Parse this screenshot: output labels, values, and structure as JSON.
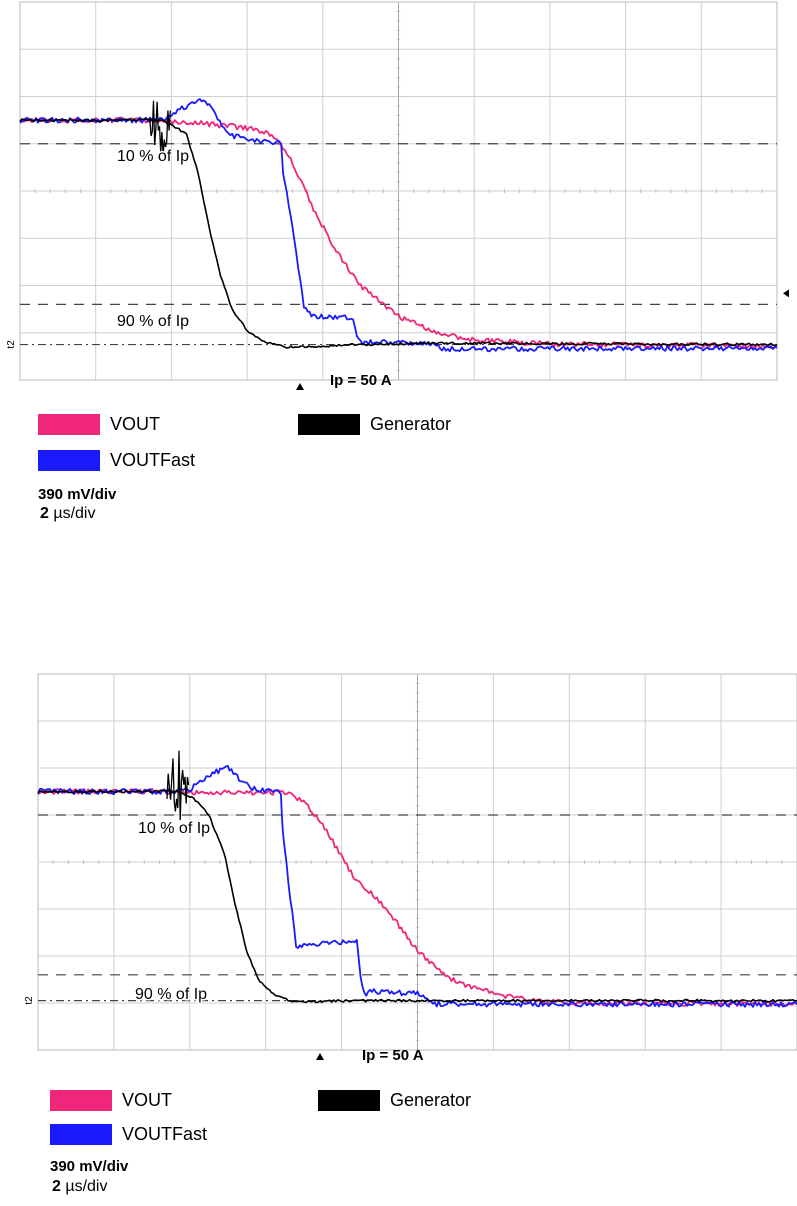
{
  "chart_data": [
    {
      "type": "line",
      "title": "",
      "xlabel": "",
      "ylabel": "",
      "divisions": {
        "x": 10,
        "y": 8
      },
      "grid": true,
      "x_unit": "µs",
      "y_unit": "div",
      "xlim": [
        -8,
        12
      ],
      "ylim": [
        0,
        8
      ],
      "time_per_div_us": 2,
      "volts_per_div_mv": 390,
      "annotations": [
        {
          "text": "10 % of Ip",
          "level_div": 5.0
        },
        {
          "text": "90 % of Ip",
          "level_div": 1.6
        },
        {
          "text": "Ip = 50 A",
          "level_div": 0.75
        }
      ],
      "channel_marker": "t2",
      "series": [
        {
          "name": "VOUT",
          "color": "#f0267a",
          "points": [
            [
              -8,
              5.5
            ],
            [
              -4.3,
              5.5
            ],
            [
              -3.8,
              5.45
            ],
            [
              -3.0,
              5.42
            ],
            [
              -2.0,
              5.33
            ],
            [
              -1.5,
              5.25
            ],
            [
              -1.2,
              5.1
            ],
            [
              -0.8,
              4.6
            ],
            [
              -0.3,
              3.7
            ],
            [
              0.3,
              2.8
            ],
            [
              1.0,
              2.0
            ],
            [
              2.0,
              1.35
            ],
            [
              3.0,
              1.0
            ],
            [
              4.0,
              0.85
            ],
            [
              6.0,
              0.76
            ],
            [
              12,
              0.72
            ]
          ]
        },
        {
          "name": "VOUTFast",
          "color": "#1a1aff",
          "points": [
            [
              -8,
              5.5
            ],
            [
              -4.3,
              5.5
            ],
            [
              -4.0,
              5.6
            ],
            [
              -3.5,
              5.85
            ],
            [
              -3.2,
              5.95
            ],
            [
              -3.0,
              5.8
            ],
            [
              -2.5,
              5.2
            ],
            [
              -1.8,
              5.05
            ],
            [
              -1.1,
              5.0
            ],
            [
              -1.05,
              4.4
            ],
            [
              -0.75,
              3.0
            ],
            [
              -0.5,
              1.55
            ],
            [
              -0.3,
              1.35
            ],
            [
              0.8,
              1.33
            ],
            [
              0.9,
              0.9
            ],
            [
              1.0,
              0.8
            ],
            [
              3.0,
              0.76
            ],
            [
              3.2,
              0.65
            ],
            [
              12,
              0.68
            ]
          ]
        },
        {
          "name": "Generator",
          "color": "#000000",
          "points": [
            [
              -8,
              5.5
            ],
            [
              -4.3,
              5.5
            ],
            [
              -4.0,
              5.4
            ],
            [
              -3.6,
              5.2
            ],
            [
              -3.3,
              4.4
            ],
            [
              -3.0,
              3.2
            ],
            [
              -2.7,
              2.2
            ],
            [
              -2.4,
              1.5
            ],
            [
              -2.0,
              1.05
            ],
            [
              -1.5,
              0.8
            ],
            [
              -1.0,
              0.7
            ],
            [
              0.0,
              0.72
            ],
            [
              1.0,
              0.75
            ],
            [
              3.0,
              0.78
            ],
            [
              12,
              0.75
            ]
          ]
        }
      ],
      "noise_burst": {
        "x_from": -4.6,
        "x_to": -4.0,
        "y_from": 4.7,
        "y_to": 6.3
      }
    },
    {
      "type": "line",
      "title": "",
      "xlabel": "",
      "ylabel": "",
      "divisions": {
        "x": 10,
        "y": 8
      },
      "grid": true,
      "x_unit": "µs",
      "y_unit": "div",
      "xlim": [
        -8,
        12
      ],
      "ylim": [
        0,
        8
      ],
      "time_per_div_us": 2,
      "volts_per_div_mv": 390,
      "annotations": [
        {
          "text": "10 % of Ip",
          "level_div": 5.0
        },
        {
          "text": "90 % of Ip",
          "level_div": 1.6
        },
        {
          "text": "Ip = 50 A",
          "level_div": 1.05
        }
      ],
      "channel_marker": "t2",
      "series": [
        {
          "name": "VOUT",
          "color": "#f0267a",
          "points": [
            [
              -8,
              5.5
            ],
            [
              -4.3,
              5.5
            ],
            [
              -3.5,
              5.47
            ],
            [
              -2.5,
              5.48
            ],
            [
              -1.5,
              5.48
            ],
            [
              -1.0,
              5.3
            ],
            [
              -0.5,
              4.8
            ],
            [
              0.3,
              3.7
            ],
            [
              1.2,
              3.0
            ],
            [
              2.0,
              2.1
            ],
            [
              3.0,
              1.45
            ],
            [
              4.0,
              1.2
            ],
            [
              5.0,
              1.05
            ],
            [
              6.0,
              1.0
            ],
            [
              12,
              0.98
            ]
          ]
        },
        {
          "name": "VOUTFast",
          "color": "#1a1aff",
          "points": [
            [
              -8,
              5.5
            ],
            [
              -4.3,
              5.5
            ],
            [
              -4.0,
              5.55
            ],
            [
              -3.4,
              5.9
            ],
            [
              -3.0,
              6.0
            ],
            [
              -2.6,
              5.7
            ],
            [
              -2.3,
              5.55
            ],
            [
              -1.6,
              5.5
            ],
            [
              -1.55,
              4.6
            ],
            [
              -1.3,
              2.9
            ],
            [
              -1.2,
              2.2
            ],
            [
              -0.8,
              2.25
            ],
            [
              0.4,
              2.3
            ],
            [
              0.5,
              1.5
            ],
            [
              0.6,
              1.2
            ],
            [
              0.9,
              1.25
            ],
            [
              2.0,
              1.2
            ],
            [
              2.4,
              0.98
            ],
            [
              12,
              0.97
            ]
          ]
        },
        {
          "name": "Generator",
          "color": "#000000",
          "points": [
            [
              -8,
              5.5
            ],
            [
              -4.3,
              5.5
            ],
            [
              -3.9,
              5.35
            ],
            [
              -3.5,
              5.0
            ],
            [
              -3.1,
              4.2
            ],
            [
              -2.8,
              3.1
            ],
            [
              -2.5,
              2.1
            ],
            [
              -2.2,
              1.5
            ],
            [
              -1.8,
              1.2
            ],
            [
              -1.3,
              1.02
            ],
            [
              0.0,
              1.05
            ],
            [
              2.0,
              1.05
            ],
            [
              12,
              1.05
            ]
          ]
        }
      ],
      "noise_burst": {
        "x_from": -4.6,
        "x_to": -4.0,
        "y_from": 4.8,
        "y_to": 6.4
      }
    }
  ],
  "legends": [
    {
      "vout": "VOUT",
      "voutfast": "VOUTFast",
      "generator": "Generator",
      "vout_color": "#f0267a",
      "voutfast_color": "#1a1aff",
      "generator_color": "#000000",
      "volts_scale": "390 mV/div",
      "time_scale_value": "2",
      "time_scale_unit": " µs/div"
    },
    {
      "vout": "VOUT",
      "voutfast": "VOUTFast",
      "generator": "Generator",
      "vout_color": "#f0267a",
      "voutfast_color": "#1a1aff",
      "generator_color": "#000000",
      "volts_scale": "390 mV/div",
      "time_scale_value": "2",
      "time_scale_unit": " µs/div"
    }
  ]
}
